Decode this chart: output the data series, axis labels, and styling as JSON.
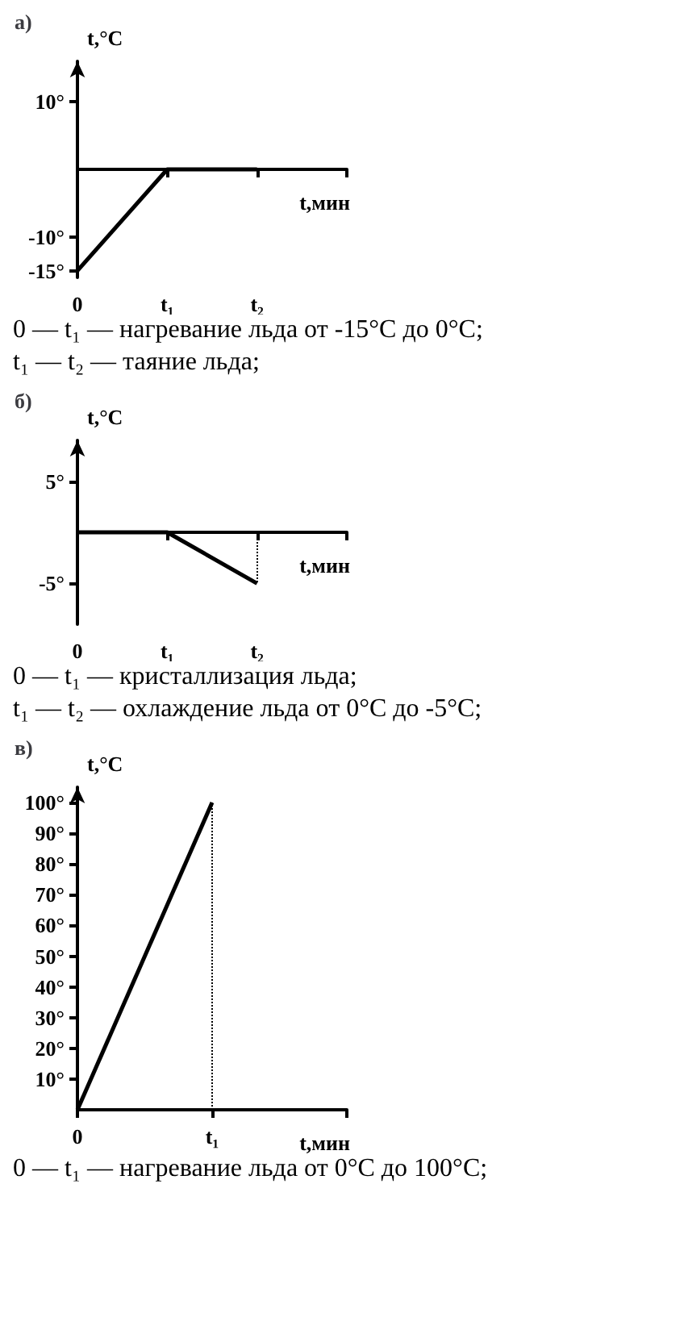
{
  "chart_data": [
    {
      "type": "line",
      "title": "а)",
      "xlabel": "t,мин",
      "ylabel": "t,°C",
      "categories": [
        "0",
        "t₁",
        "t₂",
        null
      ],
      "values": [
        -15,
        0,
        0,
        null
      ],
      "color": "#000000",
      "ylim": [
        -16,
        16
      ],
      "yticks": [
        {
          "value": 10,
          "label": "10°"
        },
        {
          "value": -10,
          "label": "-10°"
        },
        {
          "value": -15,
          "label": "-15°"
        }
      ],
      "grid": false,
      "marker": "none",
      "line_style": "solid",
      "annotations": [
        "0 — t₁ — нагревание льда от -15°C до 0°C;",
        "t₁ — t₂ — таяние льда;"
      ]
    },
    {
      "type": "line",
      "title": "б)",
      "xlabel": "t,мин",
      "ylabel": "t,°C",
      "categories": [
        "0",
        "t₁",
        "t₂",
        null
      ],
      "values": [
        0,
        0,
        -5,
        null
      ],
      "color": "#000000",
      "ylim": [
        -9,
        9
      ],
      "yticks": [
        {
          "value": 5,
          "label": "5°"
        },
        {
          "value": -5,
          "label": "-5°"
        }
      ],
      "grid": false,
      "marker": "none",
      "line_style": "solid",
      "ref_lines": [
        {
          "axis": "x",
          "value": "t₂",
          "line_style": "dotted"
        }
      ],
      "annotations": [
        "0 — t₁ — кристаллизация льда;",
        "t₁ — t₂ — охлаждение льда от 0°C до -5°C;"
      ]
    },
    {
      "type": "line",
      "title": "в)",
      "xlabel": "t,мин",
      "ylabel": "t,°C",
      "categories": [
        "0",
        "t₁",
        null
      ],
      "values": [
        0,
        100,
        null
      ],
      "color": "#000000",
      "ylim": [
        0,
        105
      ],
      "yticks": [
        {
          "value": 10,
          "label": "10°"
        },
        {
          "value": 20,
          "label": "20°"
        },
        {
          "value": 30,
          "label": "30°"
        },
        {
          "value": 40,
          "label": "40°"
        },
        {
          "value": 50,
          "label": "50°"
        },
        {
          "value": 60,
          "label": "60°"
        },
        {
          "value": 70,
          "label": "70°"
        },
        {
          "value": 80,
          "label": "80°"
        },
        {
          "value": 90,
          "label": "90°"
        },
        {
          "value": 100,
          "label": "100°"
        }
      ],
      "grid": false,
      "marker": "none",
      "line_style": "solid",
      "ref_lines": [
        {
          "axis": "x",
          "value": "t₁",
          "line_style": "dotted"
        }
      ],
      "annotations": [
        "0 — t₁ — нагревание льда от 0°C до 100°C;"
      ]
    }
  ]
}
